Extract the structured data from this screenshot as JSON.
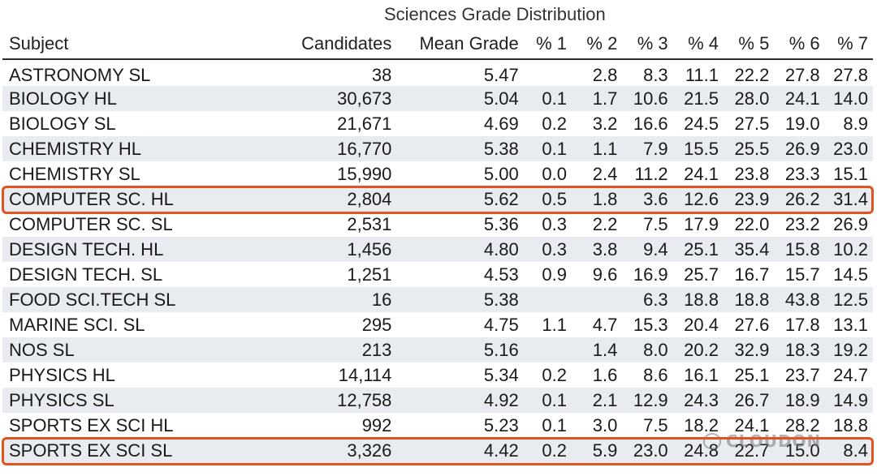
{
  "title": "Sciences Grade Distribution",
  "headers": [
    "Subject",
    "Candidates",
    "Mean Grade",
    "% 1",
    "% 2",
    "% 3",
    "% 4",
    "% 5",
    "% 6",
    "% 7"
  ],
  "rows": [
    {
      "subject": "ASTRONOMY SL",
      "candidates": "38",
      "mean": "5.47",
      "p": [
        "",
        "2.8",
        "8.3",
        "11.1",
        "22.2",
        "27.8",
        "27.8"
      ]
    },
    {
      "subject": "BIOLOGY HL",
      "candidates": "30,673",
      "mean": "5.04",
      "p": [
        "0.1",
        "1.7",
        "10.6",
        "21.5",
        "28.0",
        "24.1",
        "14.0"
      ]
    },
    {
      "subject": "BIOLOGY SL",
      "candidates": "21,671",
      "mean": "4.69",
      "p": [
        "0.2",
        "3.2",
        "16.6",
        "24.5",
        "27.5",
        "19.0",
        "8.9"
      ]
    },
    {
      "subject": "CHEMISTRY HL",
      "candidates": "16,770",
      "mean": "5.38",
      "p": [
        "0.1",
        "1.1",
        "7.9",
        "15.5",
        "25.5",
        "26.9",
        "23.0"
      ]
    },
    {
      "subject": "CHEMISTRY SL",
      "candidates": "15,990",
      "mean": "5.00",
      "p": [
        "0.0",
        "2.4",
        "11.2",
        "24.1",
        "23.8",
        "23.3",
        "15.1"
      ]
    },
    {
      "subject": "COMPUTER SC. HL",
      "candidates": "2,804",
      "mean": "5.62",
      "p": [
        "0.5",
        "1.8",
        "3.6",
        "12.6",
        "23.9",
        "26.2",
        "31.4"
      ],
      "highlight": true
    },
    {
      "subject": "COMPUTER SC. SL",
      "candidates": "2,531",
      "mean": "5.36",
      "p": [
        "0.3",
        "2.2",
        "7.5",
        "17.9",
        "22.0",
        "23.2",
        "26.9"
      ]
    },
    {
      "subject": "DESIGN TECH. HL",
      "candidates": "1,456",
      "mean": "4.80",
      "p": [
        "0.3",
        "3.8",
        "9.4",
        "25.1",
        "35.4",
        "15.8",
        "10.2"
      ]
    },
    {
      "subject": "DESIGN TECH. SL",
      "candidates": "1,251",
      "mean": "4.53",
      "p": [
        "0.9",
        "9.6",
        "16.9",
        "25.7",
        "16.7",
        "15.7",
        "14.5"
      ]
    },
    {
      "subject": "FOOD SCI.TECH SL",
      "candidates": "16",
      "mean": "5.38",
      "p": [
        "",
        "",
        "6.3",
        "18.8",
        "18.8",
        "43.8",
        "12.5"
      ]
    },
    {
      "subject": "MARINE SCI. SL",
      "candidates": "295",
      "mean": "4.75",
      "p": [
        "1.1",
        "4.7",
        "15.3",
        "20.4",
        "27.6",
        "17.8",
        "13.1"
      ]
    },
    {
      "subject": "NOS SL",
      "candidates": "213",
      "mean": "5.16",
      "p": [
        "",
        "1.4",
        "8.0",
        "20.2",
        "32.9",
        "18.3",
        "19.2"
      ]
    },
    {
      "subject": "PHYSICS HL",
      "candidates": "14,114",
      "mean": "5.34",
      "p": [
        "0.2",
        "1.6",
        "8.6",
        "16.1",
        "25.1",
        "23.7",
        "24.7"
      ]
    },
    {
      "subject": "PHYSICS SL",
      "candidates": "12,758",
      "mean": "4.92",
      "p": [
        "0.1",
        "2.1",
        "12.9",
        "24.3",
        "26.7",
        "18.9",
        "14.9"
      ]
    },
    {
      "subject": "SPORTS EX SCI HL",
      "candidates": "992",
      "mean": "5.23",
      "p": [
        "0.1",
        "3.0",
        "7.5",
        "18.2",
        "24.1",
        "28.2",
        "18.8"
      ]
    },
    {
      "subject": "SPORTS EX SCI SL",
      "candidates": "3,326",
      "mean": "4.42",
      "p": [
        "0.2",
        "5.9",
        "23.0",
        "24.8",
        "22.7",
        "15.0",
        "8.4"
      ],
      "highlight": true
    }
  ],
  "watermark": "CLOUDON",
  "colors": {
    "highlight": "#e0551f",
    "stripe": "#e8ecf1",
    "header_rule": "#2a2a2a"
  }
}
